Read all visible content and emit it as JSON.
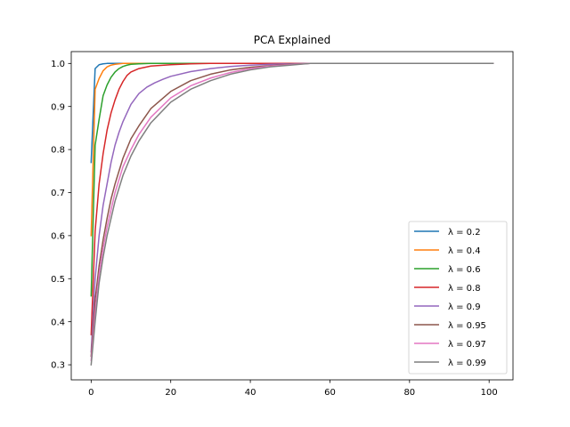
{
  "chart_data": {
    "type": "line",
    "title": "PCA Explained",
    "xlabel": "",
    "ylabel": "",
    "xlim": [
      -5,
      106
    ],
    "ylim": [
      0.265,
      1.0275
    ],
    "xticks": [
      0,
      20,
      40,
      60,
      80,
      100
    ],
    "xtick_labels": [
      "0",
      "20",
      "40",
      "60",
      "80",
      "100"
    ],
    "yticks": [
      0.3,
      0.4,
      0.5,
      0.6,
      0.7,
      0.8,
      0.9,
      1.0
    ],
    "ytick_labels": [
      "0.3",
      "0.4",
      "0.5",
      "0.6",
      "0.7",
      "0.8",
      "0.9",
      "1.0"
    ],
    "grid": false,
    "legend_position": "lower-right",
    "series": [
      {
        "name": "λ = 0.2",
        "color": "#1f77b4",
        "x": [
          0,
          1,
          2,
          3,
          4,
          5,
          10,
          20,
          50,
          101
        ],
        "y": [
          0.77,
          0.988,
          0.997,
          0.999,
          1.0,
          1.0,
          1.0,
          1.0,
          1.0,
          1.0
        ]
      },
      {
        "name": "λ = 0.4",
        "color": "#ff7f0e",
        "x": [
          0,
          1,
          2,
          3,
          4,
          5,
          6,
          8,
          10,
          20,
          50,
          101
        ],
        "y": [
          0.6,
          0.94,
          0.965,
          0.983,
          0.992,
          0.996,
          0.998,
          1.0,
          1.0,
          1.0,
          1.0,
          1.0
        ]
      },
      {
        "name": "λ = 0.6",
        "color": "#2ca02c",
        "x": [
          0,
          1,
          2,
          3,
          4,
          5,
          6,
          7,
          8,
          9,
          10,
          12,
          15,
          20,
          50,
          101
        ],
        "y": [
          0.46,
          0.81,
          0.87,
          0.925,
          0.95,
          0.968,
          0.98,
          0.988,
          0.993,
          0.996,
          0.998,
          0.999,
          1.0,
          1.0,
          1.0,
          1.0
        ]
      },
      {
        "name": "λ = 0.8",
        "color": "#d62728",
        "x": [
          0,
          1,
          2,
          3,
          4,
          5,
          6,
          7,
          8,
          9,
          10,
          12,
          15,
          20,
          25,
          30,
          50,
          101
        ],
        "y": [
          0.37,
          0.61,
          0.72,
          0.79,
          0.845,
          0.885,
          0.915,
          0.94,
          0.958,
          0.972,
          0.98,
          0.988,
          0.994,
          0.997,
          0.999,
          1.0,
          1.0,
          1.0
        ]
      },
      {
        "name": "λ = 0.9",
        "color": "#9467bd",
        "x": [
          0,
          1,
          2,
          3,
          4,
          5,
          6,
          7,
          8,
          9,
          10,
          12,
          14,
          16,
          18,
          20,
          25,
          30,
          35,
          40,
          45,
          50,
          55,
          101
        ],
        "y": [
          0.33,
          0.5,
          0.6,
          0.67,
          0.72,
          0.77,
          0.81,
          0.84,
          0.865,
          0.885,
          0.905,
          0.93,
          0.945,
          0.955,
          0.963,
          0.97,
          0.981,
          0.988,
          0.993,
          0.996,
          0.998,
          0.999,
          1.0,
          1.0
        ]
      },
      {
        "name": "λ = 0.95",
        "color": "#8c564b",
        "x": [
          0,
          1,
          2,
          3,
          4,
          5,
          6,
          8,
          10,
          12,
          15,
          20,
          25,
          30,
          35,
          40,
          45,
          50,
          55,
          101
        ],
        "y": [
          0.32,
          0.45,
          0.53,
          0.59,
          0.64,
          0.685,
          0.72,
          0.78,
          0.825,
          0.855,
          0.895,
          0.935,
          0.96,
          0.975,
          0.985,
          0.991,
          0.995,
          0.998,
          1.0,
          1.0
        ]
      },
      {
        "name": "λ = 0.97",
        "color": "#e377c2",
        "x": [
          0,
          1,
          2,
          3,
          4,
          5,
          6,
          8,
          10,
          12,
          15,
          20,
          25,
          30,
          35,
          40,
          45,
          50,
          55,
          101
        ],
        "y": [
          0.31,
          0.42,
          0.51,
          0.57,
          0.62,
          0.66,
          0.7,
          0.76,
          0.8,
          0.835,
          0.875,
          0.92,
          0.948,
          0.966,
          0.979,
          0.988,
          0.994,
          0.997,
          1.0,
          1.0
        ]
      },
      {
        "name": "λ = 0.99",
        "color": "#7f7f7f",
        "x": [
          0,
          1,
          2,
          3,
          4,
          5,
          6,
          8,
          10,
          12,
          15,
          20,
          25,
          30,
          35,
          40,
          45,
          50,
          55,
          101
        ],
        "y": [
          0.3,
          0.4,
          0.49,
          0.55,
          0.6,
          0.64,
          0.68,
          0.74,
          0.785,
          0.82,
          0.862,
          0.91,
          0.94,
          0.96,
          0.975,
          0.985,
          0.992,
          0.996,
          1.0,
          1.0
        ]
      }
    ]
  }
}
